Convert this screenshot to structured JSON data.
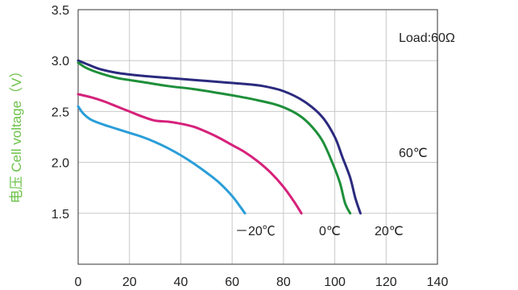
{
  "chart_data": {
    "type": "line",
    "ylabel": "电压 Cell voltage（V）",
    "xlabel": "",
    "xlim": [
      0,
      140
    ],
    "ylim": [
      1.0,
      3.5
    ],
    "x_ticks": [
      0,
      20,
      40,
      60,
      80,
      100,
      120,
      140
    ],
    "y_ticks": [
      1.5,
      2.0,
      2.5,
      3.0,
      3.5
    ],
    "grid": true,
    "annotations": [
      "Load:60Ω"
    ],
    "colors": {
      "60C": "#2b2a7e",
      "20C": "#1e8f3a",
      "0C": "#d6217a",
      "minus20C": "#2a9ed8"
    },
    "series": [
      {
        "name": "60℃",
        "key": "60C",
        "x": [
          0,
          3,
          8,
          15,
          25,
          35,
          45,
          55,
          65,
          72,
          80,
          88,
          95,
          100,
          103,
          106,
          108,
          110
        ],
        "y": [
          3.0,
          2.97,
          2.92,
          2.88,
          2.85,
          2.83,
          2.81,
          2.79,
          2.77,
          2.75,
          2.7,
          2.6,
          2.45,
          2.25,
          2.05,
          1.85,
          1.65,
          1.5
        ]
      },
      {
        "name": "20℃",
        "key": "20C",
        "x": [
          0,
          3,
          8,
          15,
          25,
          35,
          45,
          55,
          62,
          70,
          78,
          85,
          90,
          95,
          99,
          102,
          104,
          106
        ],
        "y": [
          2.98,
          2.93,
          2.88,
          2.83,
          2.79,
          2.75,
          2.72,
          2.68,
          2.65,
          2.61,
          2.56,
          2.48,
          2.38,
          2.22,
          2.0,
          1.8,
          1.6,
          1.5
        ]
      },
      {
        "name": "0℃",
        "key": "0C",
        "x": [
          0,
          5,
          10,
          15,
          20,
          25,
          30,
          35,
          40,
          45,
          50,
          55,
          60,
          65,
          70,
          75,
          80,
          84,
          87
        ],
        "y": [
          2.67,
          2.64,
          2.6,
          2.55,
          2.5,
          2.45,
          2.41,
          2.4,
          2.38,
          2.35,
          2.3,
          2.24,
          2.17,
          2.1,
          2.01,
          1.9,
          1.76,
          1.62,
          1.5
        ]
      },
      {
        "name": "－20℃",
        "key": "minus20C",
        "x": [
          0,
          2,
          5,
          10,
          15,
          20,
          25,
          30,
          35,
          40,
          45,
          50,
          55,
          60,
          63,
          65
        ],
        "y": [
          2.55,
          2.48,
          2.42,
          2.37,
          2.33,
          2.29,
          2.25,
          2.2,
          2.14,
          2.07,
          1.99,
          1.9,
          1.8,
          1.67,
          1.57,
          1.5
        ]
      }
    ]
  }
}
